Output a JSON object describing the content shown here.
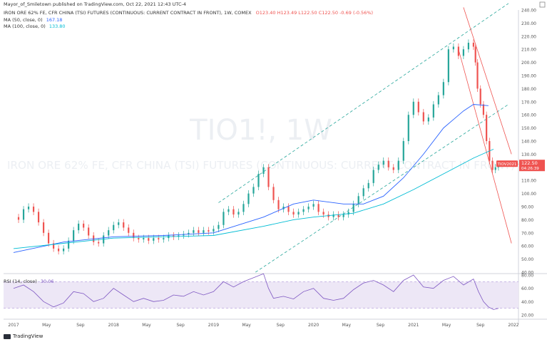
{
  "header": {
    "publisher": "Mayor_of_Smiletown published on TradingView.com, Oct 22, 2021 12:43 UTC-4",
    "symbol_line": "IRON ORE 62% FE, CFR CHINA (TSI) FUTURES (CONTINUOUS: CURRENT CONTRACT IN FRONT), 1W, COMEX",
    "ohlc": "O123.40  H123.49  L122.50  C122.50  -0.69 (-0.56%)",
    "ma50": "MA (50, close, 0)",
    "ma50_value": "167.18",
    "ma100": "MA (100, close, 0)",
    "ma100_value": "133.80"
  },
  "watermark": {
    "ticker": "TIO1!, 1W",
    "name": "IRON ORE 62% FE, CFR CHINA (TSI) FUTURES (CONTINUOUS: CURRENT CONTRACT IN FRONT)"
  },
  "price_badge": {
    "symbol": "TIOV2021",
    "price": "122.50",
    "countdown": "04:26:39"
  },
  "rsi_label": "RSI (14, close)",
  "rsi_value": "30.06",
  "footer": {
    "brand": "TradingView"
  },
  "colors": {
    "up": "#26a69a",
    "down": "#ef5350",
    "ma50": "#2962ff",
    "ma100": "#00bcd4",
    "channel": "#26a69a",
    "downtrend": "#ef5350",
    "rsi": "#7e57c2",
    "rsi_band": "#ede7f6"
  },
  "chart_data": {
    "type": "candlestick",
    "price_axis": {
      "ticks": [
        "240.00",
        "230.00",
        "220.00",
        "210.00",
        "200.00",
        "190.00",
        "180.00",
        "170.00",
        "160.00",
        "150.00",
        "140.00",
        "130.00",
        "120.00",
        "110.00",
        "100.00",
        "90.00",
        "80.00",
        "70.00",
        "60.00",
        "50.00",
        "40.00"
      ],
      "range": [
        40,
        240
      ]
    },
    "rsi_axis": {
      "ticks": [
        "80.00",
        "60.00",
        "40.00",
        "20.00"
      ],
      "range": [
        20,
        80
      ],
      "band": [
        30,
        70
      ]
    },
    "time_axis": [
      "2017",
      "May",
      "Sep",
      "2018",
      "May",
      "Sep",
      "2019",
      "May",
      "Sep",
      "2020",
      "May",
      "Sep",
      "2021",
      "May",
      "Sep",
      "2022"
    ],
    "closes": [
      [
        2017.0,
        82
      ],
      [
        2017.05,
        80
      ],
      [
        2017.1,
        88
      ],
      [
        2017.15,
        90
      ],
      [
        2017.2,
        86
      ],
      [
        2017.25,
        78
      ],
      [
        2017.3,
        70
      ],
      [
        2017.35,
        62
      ],
      [
        2017.4,
        58
      ],
      [
        2017.45,
        56
      ],
      [
        2017.5,
        58
      ],
      [
        2017.55,
        64
      ],
      [
        2017.6,
        72
      ],
      [
        2017.65,
        77
      ],
      [
        2017.7,
        74
      ],
      [
        2017.75,
        68
      ],
      [
        2017.8,
        63
      ],
      [
        2017.85,
        62
      ],
      [
        2017.9,
        68
      ],
      [
        2017.95,
        72
      ],
      [
        2018.0,
        76
      ],
      [
        2018.05,
        78
      ],
      [
        2018.1,
        74
      ],
      [
        2018.15,
        70
      ],
      [
        2018.2,
        66
      ],
      [
        2018.25,
        65
      ],
      [
        2018.3,
        66
      ],
      [
        2018.35,
        64
      ],
      [
        2018.4,
        66
      ],
      [
        2018.45,
        65
      ],
      [
        2018.5,
        66
      ],
      [
        2018.55,
        68
      ],
      [
        2018.6,
        67
      ],
      [
        2018.65,
        68
      ],
      [
        2018.7,
        69
      ],
      [
        2018.75,
        70
      ],
      [
        2018.8,
        72
      ],
      [
        2018.85,
        70
      ],
      [
        2018.9,
        72
      ],
      [
        2018.95,
        71
      ],
      [
        2019.0,
        73
      ],
      [
        2019.05,
        76
      ],
      [
        2019.1,
        86
      ],
      [
        2019.15,
        88
      ],
      [
        2019.2,
        84
      ],
      [
        2019.25,
        86
      ],
      [
        2019.3,
        92
      ],
      [
        2019.35,
        100
      ],
      [
        2019.4,
        105
      ],
      [
        2019.45,
        115
      ],
      [
        2019.5,
        120
      ],
      [
        2019.55,
        105
      ],
      [
        2019.6,
        95
      ],
      [
        2019.65,
        88
      ],
      [
        2019.7,
        90
      ],
      [
        2019.75,
        86
      ],
      [
        2019.8,
        84
      ],
      [
        2019.85,
        86
      ],
      [
        2019.9,
        88
      ],
      [
        2019.95,
        90
      ],
      [
        2020.0,
        92
      ],
      [
        2020.05,
        86
      ],
      [
        2020.1,
        84
      ],
      [
        2020.15,
        82
      ],
      [
        2020.2,
        84
      ],
      [
        2020.25,
        82
      ],
      [
        2020.3,
        84
      ],
      [
        2020.35,
        86
      ],
      [
        2020.4,
        92
      ],
      [
        2020.45,
        98
      ],
      [
        2020.5,
        104
      ],
      [
        2020.55,
        108
      ],
      [
        2020.6,
        118
      ],
      [
        2020.65,
        122
      ],
      [
        2020.7,
        125
      ],
      [
        2020.75,
        120
      ],
      [
        2020.8,
        118
      ],
      [
        2020.85,
        125
      ],
      [
        2020.9,
        140
      ],
      [
        2020.95,
        160
      ],
      [
        2021.0,
        170
      ],
      [
        2021.05,
        162
      ],
      [
        2021.1,
        155
      ],
      [
        2021.15,
        158
      ],
      [
        2021.2,
        168
      ],
      [
        2021.25,
        175
      ],
      [
        2021.3,
        185
      ],
      [
        2021.35,
        210
      ],
      [
        2021.4,
        212
      ],
      [
        2021.45,
        205
      ],
      [
        2021.5,
        210
      ],
      [
        2021.55,
        215
      ],
      [
        2021.6,
        212
      ],
      [
        2021.62,
        200
      ],
      [
        2021.64,
        180
      ],
      [
        2021.67,
        168
      ],
      [
        2021.7,
        160
      ],
      [
        2021.73,
        140
      ],
      [
        2021.76,
        125
      ],
      [
        2021.79,
        118
      ],
      [
        2021.82,
        120
      ],
      [
        2021.85,
        122.5
      ]
    ],
    "ma50_points": [
      [
        2017.0,
        55
      ],
      [
        2017.5,
        63
      ],
      [
        2018.0,
        67
      ],
      [
        2018.5,
        68
      ],
      [
        2019.0,
        70
      ],
      [
        2019.5,
        82
      ],
      [
        2019.8,
        92
      ],
      [
        2020.0,
        95
      ],
      [
        2020.3,
        92
      ],
      [
        2020.5,
        92
      ],
      [
        2020.7,
        98
      ],
      [
        2020.9,
        112
      ],
      [
        2021.1,
        130
      ],
      [
        2021.3,
        150
      ],
      [
        2021.5,
        163
      ],
      [
        2021.6,
        168
      ],
      [
        2021.75,
        167
      ]
    ],
    "ma100_points": [
      [
        2017.0,
        58
      ],
      [
        2017.5,
        62
      ],
      [
        2018.0,
        66
      ],
      [
        2018.5,
        67
      ],
      [
        2019.0,
        68
      ],
      [
        2019.5,
        75
      ],
      [
        2019.8,
        80
      ],
      [
        2020.0,
        82
      ],
      [
        2020.4,
        85
      ],
      [
        2020.7,
        92
      ],
      [
        2021.0,
        103
      ],
      [
        2021.3,
        115
      ],
      [
        2021.6,
        127
      ],
      [
        2021.8,
        133.8
      ]
    ],
    "rsi_points": [
      [
        2017.0,
        60
      ],
      [
        2017.1,
        65
      ],
      [
        2017.2,
        55
      ],
      [
        2017.3,
        40
      ],
      [
        2017.4,
        32
      ],
      [
        2017.5,
        38
      ],
      [
        2017.6,
        55
      ],
      [
        2017.7,
        52
      ],
      [
        2017.8,
        40
      ],
      [
        2017.9,
        45
      ],
      [
        2018.0,
        60
      ],
      [
        2018.1,
        50
      ],
      [
        2018.2,
        40
      ],
      [
        2018.3,
        45
      ],
      [
        2018.4,
        40
      ],
      [
        2018.5,
        42
      ],
      [
        2018.6,
        50
      ],
      [
        2018.7,
        48
      ],
      [
        2018.8,
        55
      ],
      [
        2018.9,
        50
      ],
      [
        2019.0,
        55
      ],
      [
        2019.1,
        70
      ],
      [
        2019.2,
        62
      ],
      [
        2019.3,
        70
      ],
      [
        2019.4,
        76
      ],
      [
        2019.5,
        82
      ],
      [
        2019.55,
        60
      ],
      [
        2019.6,
        45
      ],
      [
        2019.7,
        48
      ],
      [
        2019.8,
        44
      ],
      [
        2019.9,
        55
      ],
      [
        2020.0,
        60
      ],
      [
        2020.1,
        45
      ],
      [
        2020.2,
        42
      ],
      [
        2020.3,
        45
      ],
      [
        2020.4,
        58
      ],
      [
        2020.5,
        68
      ],
      [
        2020.6,
        72
      ],
      [
        2020.7,
        65
      ],
      [
        2020.8,
        55
      ],
      [
        2020.9,
        72
      ],
      [
        2021.0,
        80
      ],
      [
        2021.1,
        62
      ],
      [
        2021.2,
        60
      ],
      [
        2021.3,
        72
      ],
      [
        2021.4,
        78
      ],
      [
        2021.5,
        65
      ],
      [
        2021.6,
        74
      ],
      [
        2021.65,
        55
      ],
      [
        2021.7,
        40
      ],
      [
        2021.75,
        32
      ],
      [
        2021.8,
        28
      ],
      [
        2021.85,
        30
      ]
    ]
  }
}
